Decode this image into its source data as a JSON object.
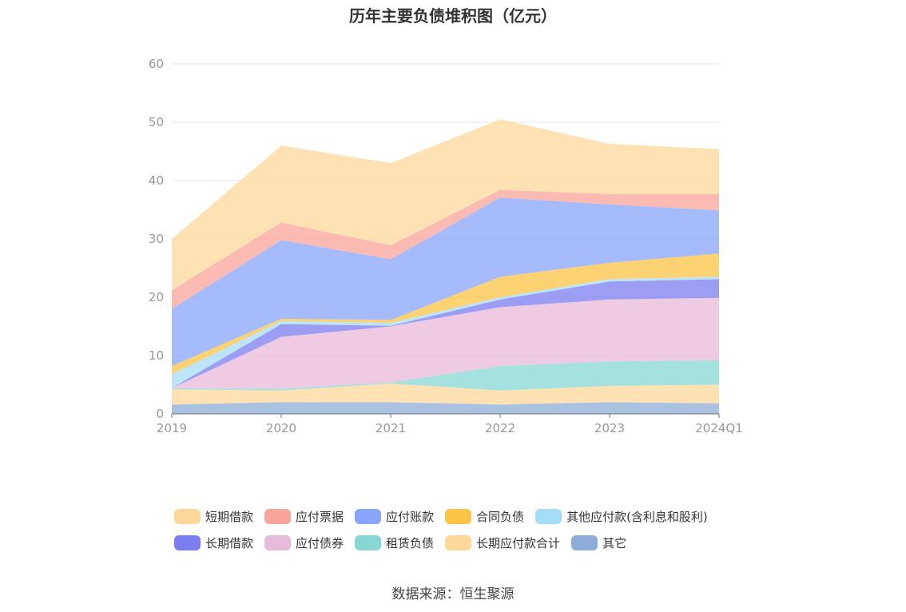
{
  "chart_data": {
    "type": "area",
    "title": "历年主要负债堆积图（亿元）",
    "xlabel": "",
    "ylabel": "",
    "ylim": [
      0,
      60
    ],
    "yticks": [
      0,
      10,
      20,
      30,
      40,
      50,
      60
    ],
    "categories": [
      "2019",
      "2020",
      "2021",
      "2022",
      "2023",
      "2024Q1"
    ],
    "stacked": true,
    "grid": true,
    "legend_position": "bottom",
    "series": [
      {
        "name": "其它",
        "color": "#8eacd8",
        "values": [
          1.6,
          2.0,
          2.0,
          1.6,
          2.0,
          1.8
        ]
      },
      {
        "name": "长期应付款合计",
        "color": "#fdd89a",
        "values": [
          2.6,
          2.0,
          3.2,
          2.4,
          2.8,
          3.2
        ]
      },
      {
        "name": "租赁负债",
        "color": "#87d8d4",
        "values": [
          0.2,
          0.3,
          0.2,
          4.2,
          4.2,
          4.2
        ]
      },
      {
        "name": "应付债券",
        "color": "#e8bada",
        "values": [
          0.0,
          8.9,
          9.6,
          10.1,
          10.6,
          10.7
        ]
      },
      {
        "name": "长期借款",
        "color": "#7b7ef0",
        "values": [
          0.0,
          2.2,
          0.1,
          1.3,
          3.1,
          3.2
        ]
      },
      {
        "name": "其他应付款(含利息和股利)",
        "color": "#a5dcf7",
        "values": [
          2.4,
          0.5,
          0.5,
          0.4,
          0.4,
          0.4
        ]
      },
      {
        "name": "合同负债",
        "color": "#fcc344",
        "values": [
          1.4,
          0.4,
          0.5,
          3.5,
          2.8,
          4.0
        ]
      },
      {
        "name": "应付账款",
        "color": "#88a4fb",
        "values": [
          9.8,
          13.5,
          10.4,
          13.6,
          10.0,
          7.4
        ]
      },
      {
        "name": "应付票据",
        "color": "#f9a49a",
        "values": [
          3.2,
          3.0,
          2.4,
          1.3,
          1.8,
          2.8
        ]
      },
      {
        "name": "短期借款",
        "color": "#fdd89a",
        "values": [
          8.8,
          13.2,
          14.1,
          12.1,
          8.6,
          7.7
        ]
      }
    ]
  },
  "legend": [
    {
      "name": "短期借款",
      "color": "#fdd89a"
    },
    {
      "name": "应付票据",
      "color": "#f9a49a"
    },
    {
      "name": "应付账款",
      "color": "#88a4fb"
    },
    {
      "name": "合同负债",
      "color": "#fcc344"
    },
    {
      "name": "其他应付款(含利息和股利)",
      "color": "#a5dcf7"
    },
    {
      "name": "长期借款",
      "color": "#7b7ef0"
    },
    {
      "name": "应付债券",
      "color": "#e8bada"
    },
    {
      "name": "租赁负债",
      "color": "#87d8d4"
    },
    {
      "name": "长期应付款合计",
      "color": "#fdd89a"
    },
    {
      "name": "其它",
      "color": "#8eacd8"
    }
  ],
  "source": "数据来源：恒生聚源"
}
